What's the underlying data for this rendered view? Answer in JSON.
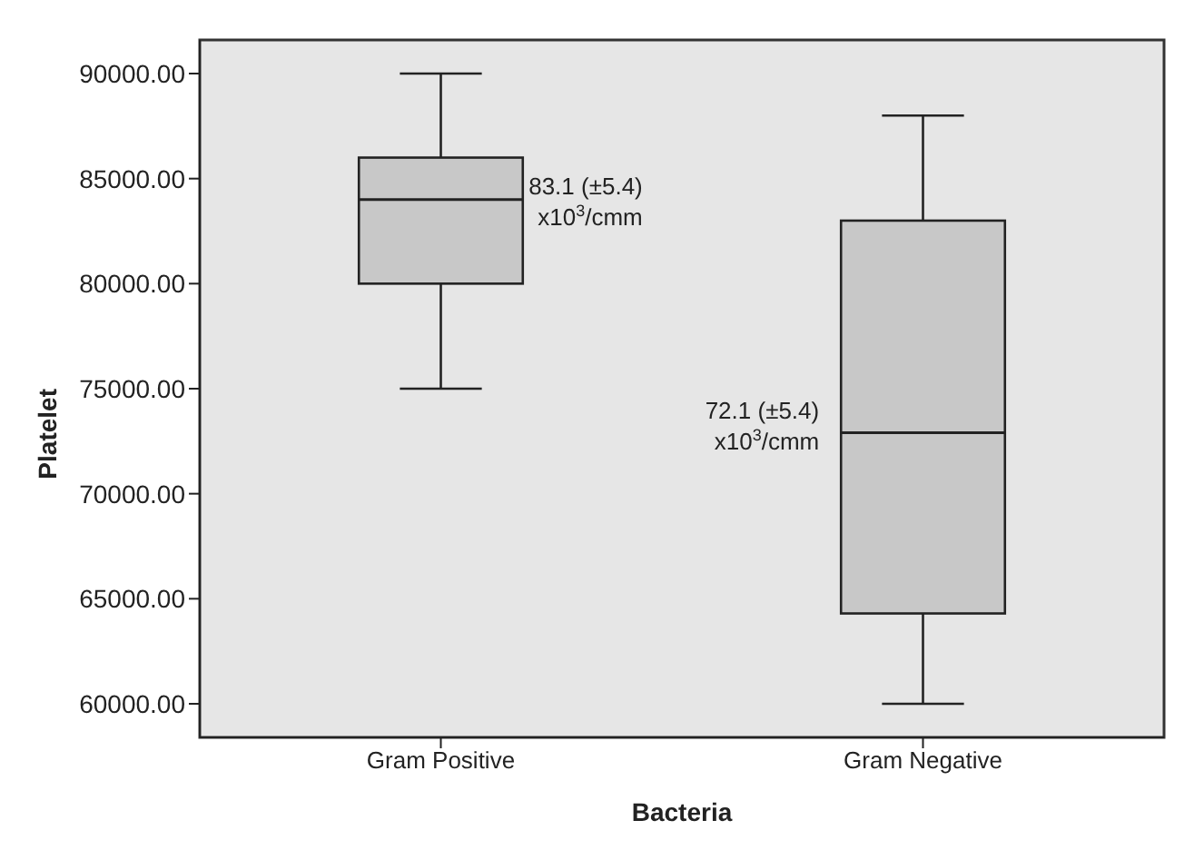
{
  "chart_data": {
    "type": "box",
    "xlabel": "Bacteria",
    "ylabel": "Platelet",
    "categories": [
      "Gram Positive",
      "Gram Negative"
    ],
    "boxes": [
      {
        "low": 75000,
        "q1": 80000,
        "median": 84000,
        "q3": 86000,
        "high": 90000
      },
      {
        "low": 60000,
        "q1": 64300,
        "median": 72900,
        "q3": 83000,
        "high": 88000
      }
    ],
    "color": "#c8c8c8",
    "ylim": [
      58400,
      91600
    ],
    "yticks": [
      {
        "value": 60000,
        "label": "60000.00"
      },
      {
        "value": 65000,
        "label": "65000.00"
      },
      {
        "value": 70000,
        "label": "70000.00"
      },
      {
        "value": 75000,
        "label": "75000.00"
      },
      {
        "value": 80000,
        "label": "80000.00"
      },
      {
        "value": 85000,
        "label": "85000.00"
      },
      {
        "value": 90000,
        "label": "90000.00"
      }
    ],
    "annotations": [
      "83.1 (±5.4)\nx10$^{3}$/cmm",
      "72.1 (±5.4)\nx10$^{3}$/cmm"
    ]
  }
}
